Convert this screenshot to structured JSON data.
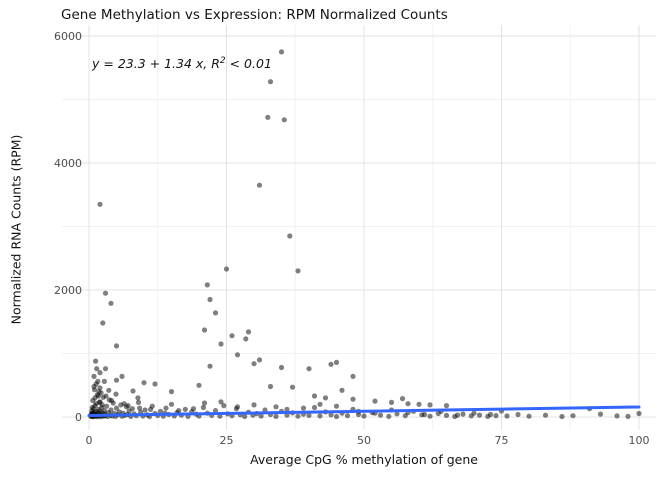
{
  "title": "Gene Methylation vs Expression: RPM Normalized Counts",
  "annotation": {
    "prefix": "y = 23.3 + 1.34 x, ",
    "r_label": "R",
    "sup": "2",
    "suffix": " < 0.01"
  },
  "chart_data": {
    "type": "scatter",
    "title": "Gene Methylation vs Expression: RPM Normalized Counts",
    "xlabel": "Average CpG % methylation of gene",
    "ylabel": "Normalized RNA Counts (RPM)",
    "xlim": [
      0,
      100
    ],
    "ylim": [
      0,
      6000
    ],
    "x_ticks": [
      0,
      25,
      50,
      75,
      100
    ],
    "y_ticks": [
      0,
      2000,
      4000,
      6000
    ],
    "x_minor_ticks": [
      12.5,
      37.5,
      62.5,
      87.5
    ],
    "y_minor_ticks": [
      1000,
      3000,
      5000
    ],
    "grid": true,
    "legend": "none",
    "point_color": "#000000",
    "point_opacity": 0.5,
    "point_radius": 2.6,
    "grid_major_color": "#e3e3e3",
    "grid_minor_color": "#f2f2f2",
    "regression": {
      "intercept": 23.3,
      "slope": 1.34,
      "r_squared": "< 0.01",
      "label": "y = 23.3 + 1.34 x, R^2 < 0.01",
      "color": "#3366FF",
      "x_range": [
        0,
        100
      ]
    },
    "points": [
      [
        35,
        5750
      ],
      [
        33,
        5280
      ],
      [
        32.5,
        4720
      ],
      [
        35.5,
        4680
      ],
      [
        31,
        3650
      ],
      [
        2,
        3350
      ],
      [
        36.5,
        2850
      ],
      [
        25,
        2330
      ],
      [
        38,
        2300
      ],
      [
        21.5,
        2080
      ],
      [
        3,
        1950
      ],
      [
        22,
        1850
      ],
      [
        4,
        1790
      ],
      [
        23,
        1640
      ],
      [
        2.5,
        1480
      ],
      [
        21,
        1370
      ],
      [
        29,
        1340
      ],
      [
        26,
        1280
      ],
      [
        28.5,
        1230
      ],
      [
        24,
        1150
      ],
      [
        5,
        1120
      ],
      [
        27,
        980
      ],
      [
        31,
        900
      ],
      [
        1.2,
        880
      ],
      [
        30,
        840
      ],
      [
        45,
        860
      ],
      [
        44,
        830
      ],
      [
        22,
        800
      ],
      [
        35,
        780
      ],
      [
        3,
        760
      ],
      [
        40,
        760
      ],
      [
        1.4,
        760
      ],
      [
        2,
        700
      ],
      [
        6,
        640
      ],
      [
        0.9,
        640
      ],
      [
        48,
        640
      ],
      [
        5,
        580
      ],
      [
        1.6,
        560
      ],
      [
        10,
        540
      ],
      [
        12,
        520
      ],
      [
        20,
        500
      ],
      [
        33,
        480
      ],
      [
        37,
        470
      ],
      [
        2,
        460
      ],
      [
        1,
        430
      ],
      [
        46,
        420
      ],
      [
        8,
        410
      ],
      [
        15,
        400
      ],
      [
        41,
        330
      ],
      [
        43,
        300
      ],
      [
        57,
        290
      ],
      [
        48,
        280
      ],
      [
        52,
        250
      ],
      [
        55,
        230
      ],
      [
        58,
        210
      ],
      [
        60,
        200
      ],
      [
        62,
        190
      ],
      [
        65,
        180
      ],
      [
        0.3,
        15
      ],
      [
        0.4,
        40
      ],
      [
        0.5,
        8
      ],
      [
        0.5,
        95
      ],
      [
        0.6,
        22
      ],
      [
        0.7,
        60
      ],
      [
        0.8,
        5
      ],
      [
        0.8,
        130
      ],
      [
        0.9,
        33
      ],
      [
        1,
        10
      ],
      [
        1,
        75
      ],
      [
        1.1,
        180
      ],
      [
        1.2,
        48
      ],
      [
        1.3,
        12
      ],
      [
        1.3,
        210
      ],
      [
        1.4,
        85
      ],
      [
        1.5,
        28
      ],
      [
        1.5,
        350
      ],
      [
        1.6,
        7
      ],
      [
        1.7,
        120
      ],
      [
        1.8,
        55
      ],
      [
        1.9,
        18
      ],
      [
        2,
        240
      ],
      [
        2,
        90
      ],
      [
        2.1,
        35
      ],
      [
        2.2,
        7
      ],
      [
        2.3,
        150
      ],
      [
        2.4,
        65
      ],
      [
        2.5,
        25
      ],
      [
        2.6,
        310
      ],
      [
        2.7,
        12
      ],
      [
        2.8,
        100
      ],
      [
        2.9,
        45
      ],
      [
        3,
        20
      ],
      [
        3.2,
        170
      ],
      [
        3.4,
        8
      ],
      [
        3.5,
        70
      ],
      [
        3.7,
        270
      ],
      [
        3.9,
        30
      ],
      [
        4,
        110
      ],
      [
        4.2,
        15
      ],
      [
        4.4,
        220
      ],
      [
        4.6,
        55
      ],
      [
        4.8,
        9
      ],
      [
        5,
        140
      ],
      [
        5.2,
        35
      ],
      [
        5.5,
        80
      ],
      [
        5.8,
        190
      ],
      [
        6,
        12
      ],
      [
        6.2,
        60
      ],
      [
        6.5,
        25
      ],
      [
        6.8,
        160
      ],
      [
        7,
        40
      ],
      [
        7.3,
        95
      ],
      [
        7.6,
        10
      ],
      [
        7.9,
        130
      ],
      [
        8.2,
        50
      ],
      [
        8.6,
        20
      ],
      [
        9,
        230
      ],
      [
        9.4,
        75
      ],
      [
        9.8,
        15
      ],
      [
        10.2,
        110
      ],
      [
        10.6,
        35
      ],
      [
        11,
        8
      ],
      [
        11.5,
        170
      ],
      [
        12,
        55
      ],
      [
        12.5,
        25
      ],
      [
        13,
        90
      ],
      [
        13.5,
        12
      ],
      [
        14,
        140
      ],
      [
        14.5,
        40
      ],
      [
        15,
        200
      ],
      [
        15.5,
        18
      ],
      [
        16,
        70
      ],
      [
        16.8,
        30
      ],
      [
        17.5,
        120
      ],
      [
        18,
        10
      ],
      [
        18.7,
        85
      ],
      [
        19.5,
        45
      ],
      [
        20,
        15
      ],
      [
        20.8,
        150
      ],
      [
        21.5,
        60
      ],
      [
        22.3,
        25
      ],
      [
        23,
        100
      ],
      [
        23.8,
        12
      ],
      [
        24.5,
        180
      ],
      [
        25.2,
        50
      ],
      [
        26,
        20
      ],
      [
        26.8,
        130
      ],
      [
        27.5,
        35
      ],
      [
        28.3,
        8
      ],
      [
        29,
        75
      ],
      [
        29.8,
        28
      ],
      [
        30.5,
        55
      ],
      [
        31.3,
        15
      ],
      [
        32,
        110
      ],
      [
        33,
        40
      ],
      [
        34,
        10
      ],
      [
        35,
        90
      ],
      [
        36,
        30
      ],
      [
        37,
        65
      ],
      [
        38,
        12
      ],
      [
        39,
        45
      ],
      [
        40,
        25
      ],
      [
        41,
        150
      ],
      [
        42,
        18
      ],
      [
        43,
        80
      ],
      [
        44,
        35
      ],
      [
        45,
        8
      ],
      [
        46,
        60
      ],
      [
        47,
        22
      ],
      [
        48,
        120
      ],
      [
        49,
        40
      ],
      [
        50,
        15
      ],
      [
        51.5,
        70
      ],
      [
        53,
        28
      ],
      [
        54.5,
        10
      ],
      [
        56,
        50
      ],
      [
        57.5,
        20
      ],
      [
        59,
        90
      ],
      [
        60.5,
        35
      ],
      [
        62,
        12
      ],
      [
        63.5,
        55
      ],
      [
        65,
        25
      ],
      [
        66.5,
        8
      ],
      [
        68,
        45
      ],
      [
        69.5,
        18
      ],
      [
        71,
        30
      ],
      [
        72.5,
        10
      ],
      [
        74,
        22
      ],
      [
        75,
        95
      ],
      [
        76,
        15
      ],
      [
        78,
        40
      ],
      [
        80,
        12
      ],
      [
        83,
        28
      ],
      [
        86,
        8
      ],
      [
        88,
        20
      ],
      [
        91,
        130
      ],
      [
        93,
        45
      ],
      [
        96,
        18
      ],
      [
        98,
        10
      ],
      [
        100,
        55
      ],
      [
        0.4,
        12
      ],
      [
        0.6,
        150
      ],
      [
        0.7,
        260
      ],
      [
        1.1,
        300
      ],
      [
        1.8,
        400
      ],
      [
        2.2,
        380
      ],
      [
        0.5,
        55
      ],
      [
        1.9,
        230
      ],
      [
        3.1,
        330
      ],
      [
        4.1,
        260
      ],
      [
        6.4,
        210
      ],
      [
        8.9,
        300
      ],
      [
        2.4,
        190
      ],
      [
        1.7,
        330
      ],
      [
        0.9,
        480
      ],
      [
        1.3,
        520
      ],
      [
        3.6,
        420
      ],
      [
        2.8,
        560
      ],
      [
        4.9,
        360
      ],
      [
        7.1,
        180
      ],
      [
        9.2,
        140
      ],
      [
        11.2,
        120
      ],
      [
        13.8,
        60
      ],
      [
        16.3,
        100
      ],
      [
        19,
        130
      ],
      [
        21,
        220
      ],
      [
        24,
        240
      ],
      [
        27,
        160
      ],
      [
        30,
        190
      ],
      [
        34,
        160
      ],
      [
        36,
        120
      ],
      [
        39,
        140
      ],
      [
        42,
        200
      ],
      [
        45,
        170
      ],
      [
        49,
        90
      ],
      [
        52,
        60
      ],
      [
        55,
        110
      ],
      [
        58,
        70
      ],
      [
        61,
        40
      ],
      [
        64,
        90
      ],
      [
        67,
        30
      ],
      [
        70,
        60
      ],
      [
        73,
        40
      ]
    ]
  }
}
